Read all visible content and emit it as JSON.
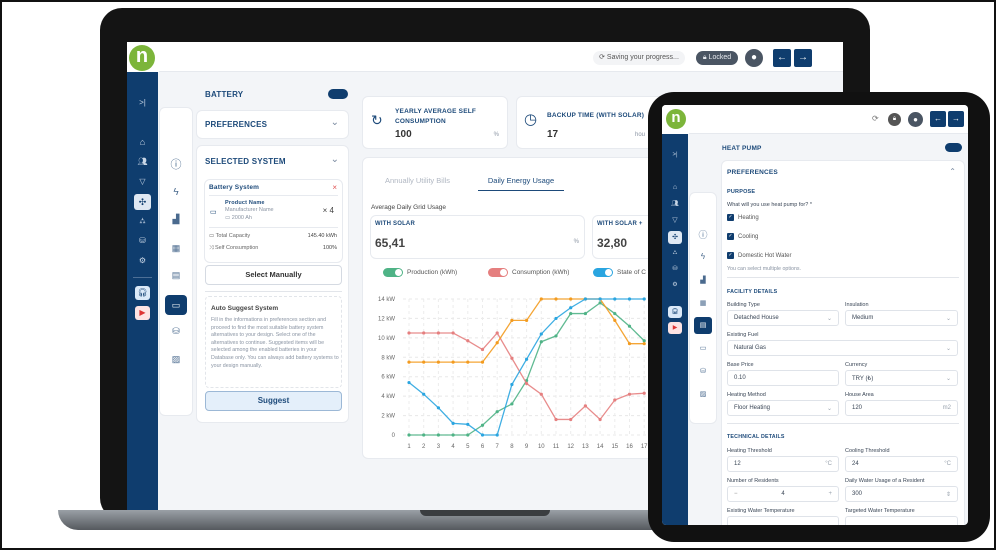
{
  "colors": {
    "navy": "#0f3d6e",
    "brand_green": "#7cb53a",
    "production": "#4fb386",
    "consumption": "#e57f7f",
    "grid": "#f39b1f",
    "state_of_charge": "#2aa5e0"
  },
  "laptop": {
    "topbar": {
      "logo": "n",
      "saving": "Saving your progress...",
      "locked": "Locked",
      "back_icon": "←",
      "forward_icon": "→"
    },
    "sidebar": {
      "collapse_icon": ">|",
      "items": [
        "home-icon",
        "users-icon",
        "filter-icon",
        "fan-icon",
        "network-icon",
        "database-icon",
        "settings-icon",
        "headset-icon",
        "youtube-icon"
      ]
    },
    "section_icons": [
      "info-icon",
      "bolt-icon",
      "chart-icon",
      "solar-panel-icon",
      "inverter-icon",
      "battery-icon",
      "database-icon",
      "report-icon"
    ],
    "left_panel": {
      "title": "BATTERY",
      "preferences": "PREFERENCES",
      "selected_system": "SELECTED SYSTEM",
      "battery_system": {
        "title": "Battery System",
        "product_name": "Product Name",
        "manufacturer": "Manufacturer Name",
        "capacity": "2000 Ah",
        "quantity": "× 4",
        "rows": [
          {
            "label": "Total Capacity",
            "value": "145.40 kWh"
          },
          {
            "label": "Self Consumption",
            "value": "100%"
          }
        ]
      },
      "select_manually": "Select Manually",
      "auto_suggest": {
        "title": "Auto Suggest System",
        "text": "Fill in the informations in preferences section and proceed to find the most suitable battery system alternatives to your design. Select one of the alternatives to continue. Suggested items will be selected among the enabled batteries in your Database only. You can always add battery systems to your design manually."
      },
      "suggest": "Suggest"
    },
    "stats": [
      {
        "title": "YEARLY AVERAGE SELF CONSUMPTION",
        "value": "100",
        "unit": "%"
      },
      {
        "title": "BACKUP TIME (WITH SOLAR)",
        "value": "17",
        "unit": "hou"
      }
    ],
    "tabs": [
      {
        "label": "Annually Utility Bills",
        "active": false
      },
      {
        "label": "Daily Energy Usage",
        "active": true
      }
    ],
    "grid_usage": {
      "title": "Average Daily Grid Usage",
      "boxes": [
        {
          "label": "WITH SOLAR",
          "value": "65,41",
          "unit": "%"
        },
        {
          "label": "WITH SOLAR +",
          "value": "32,80"
        }
      ]
    },
    "legend": [
      {
        "label": "Production (kWh)",
        "color": "#4fb386"
      },
      {
        "label": "Consumption (kWh)",
        "color": "#e57f7f"
      },
      {
        "label": "State of C",
        "color": "#2aa5e0"
      }
    ]
  },
  "chart_data": {
    "type": "line",
    "x": [
      1,
      2,
      3,
      4,
      5,
      6,
      7,
      8,
      9,
      10,
      11,
      12,
      13,
      14,
      15,
      16,
      17
    ],
    "ylim": [
      0,
      14
    ],
    "yticks": [
      "0",
      "2 kW",
      "4 kW",
      "6 kW",
      "8 kW",
      "10 kW",
      "12 kW",
      "14 kW"
    ],
    "grid": true,
    "series": [
      {
        "name": "Production (kWh)",
        "color": "#4fb386",
        "values": [
          0,
          0,
          0,
          0,
          0,
          1,
          2.4,
          3.2,
          5.6,
          9.6,
          10.2,
          12.5,
          12.5,
          13.6,
          12.5,
          11.2,
          9.7
        ]
      },
      {
        "name": "Consumption (kWh)",
        "color": "#e57f7f",
        "values": [
          10.5,
          10.5,
          10.5,
          10.5,
          9.7,
          8.8,
          10.5,
          7.9,
          5.3,
          4.2,
          1.6,
          1.6,
          3,
          1.6,
          3.6,
          4.2,
          4.3
        ]
      },
      {
        "color": "#f39b1f",
        "values": [
          7.5,
          7.5,
          7.5,
          7.5,
          7.5,
          7.5,
          9.5,
          11.8,
          11.8,
          14,
          14,
          14,
          14,
          14,
          11.8,
          9.4,
          9.4
        ]
      },
      {
        "name": "State of C",
        "color": "#2aa5e0",
        "values": [
          5.4,
          4.2,
          2.8,
          1.2,
          1.1,
          0,
          0,
          5.2,
          7.8,
          10.4,
          12,
          13.1,
          14,
          14,
          14,
          14,
          14
        ]
      }
    ]
  },
  "tablet": {
    "logo": "n",
    "title": "HEAT PUMP",
    "preferences": "PREFERENCES",
    "purpose": {
      "title": "PURPOSE",
      "question": "What will you use heat pump for? *",
      "options": [
        "Heating",
        "Cooling",
        "Domestic Hot Water"
      ],
      "note": "You can select multiple options."
    },
    "facility": {
      "title": "FACILITY DETAILS",
      "building_type": {
        "label": "Building Type",
        "value": "Detached House"
      },
      "insulation": {
        "label": "Insulation",
        "value": "Medium"
      },
      "existing_fuel": {
        "label": "Existing Fuel",
        "value": "Natural Gas"
      },
      "base_price": {
        "label": "Base Price",
        "value": "0.10"
      },
      "currency": {
        "label": "Currency",
        "value": "TRY (₺)"
      },
      "heating_method": {
        "label": "Heating Method",
        "value": "Floor Heating"
      },
      "house_area": {
        "label": "House Area",
        "value": "120",
        "unit": "m2"
      }
    },
    "technical": {
      "title": "TECHNICAL DETAILS",
      "heating_threshold": {
        "label": "Heating Threshold",
        "value": "12",
        "unit": "°C"
      },
      "cooling_threshold": {
        "label": "Cooling Threshold",
        "value": "24",
        "unit": "°C"
      },
      "residents": {
        "label": "Number of Residents",
        "value": "4",
        "minus": "−",
        "plus": "+"
      },
      "water_usage": {
        "label": "Daily Water Usage of a Resident",
        "value": "300"
      },
      "existing_temp": {
        "label": "Existing Water Temperature"
      },
      "targeted_temp": {
        "label": "Targeted Water Temperature"
      }
    }
  }
}
